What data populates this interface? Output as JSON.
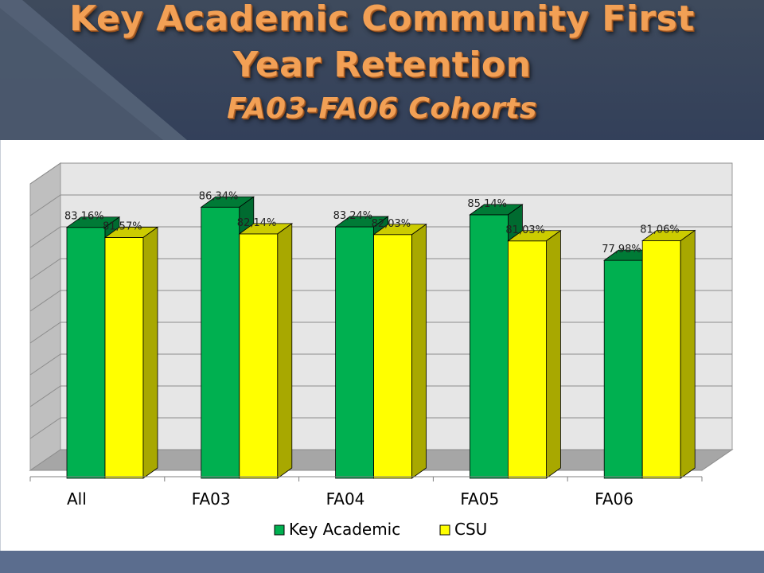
{
  "title": {
    "line1": "Key Academic Community First",
    "line2": "Year Retention",
    "line3": "FA03-FA06 Cohorts"
  },
  "colors": {
    "key_academic": "#00b050",
    "key_academic_top": "#007a36",
    "key_academic_side": "#006b30",
    "csu": "#ffff00",
    "csu_top": "#cccc00",
    "csu_side": "#a8a800",
    "wall": "#e6e6e6",
    "floor": "#a6a6a6",
    "grid": "#8c8c8c",
    "header_bg": "#33405a",
    "title_color": "#f2a055"
  },
  "chart_data": {
    "type": "bar",
    "style": "3d-clustered",
    "categories": [
      "All",
      "FA03",
      "FA04",
      "FA05",
      "FA06"
    ],
    "series": [
      {
        "name": "Key Academic",
        "values": [
          83.16,
          86.34,
          83.24,
          85.14,
          77.98
        ],
        "labels": [
          "83,16%",
          "86,34%",
          "83,24%",
          "85,14%",
          "77,98%"
        ]
      },
      {
        "name": "CSU",
        "values": [
          81.57,
          82.14,
          82.03,
          81.03,
          81.06
        ],
        "labels": [
          "81,57%",
          "82,14%",
          "82,03%",
          "81,03%",
          "81,06%"
        ]
      }
    ],
    "ylim": [
      45,
      90
    ],
    "grid": true,
    "legend": "bottom",
    "title": "",
    "xlabel": "",
    "ylabel": ""
  }
}
